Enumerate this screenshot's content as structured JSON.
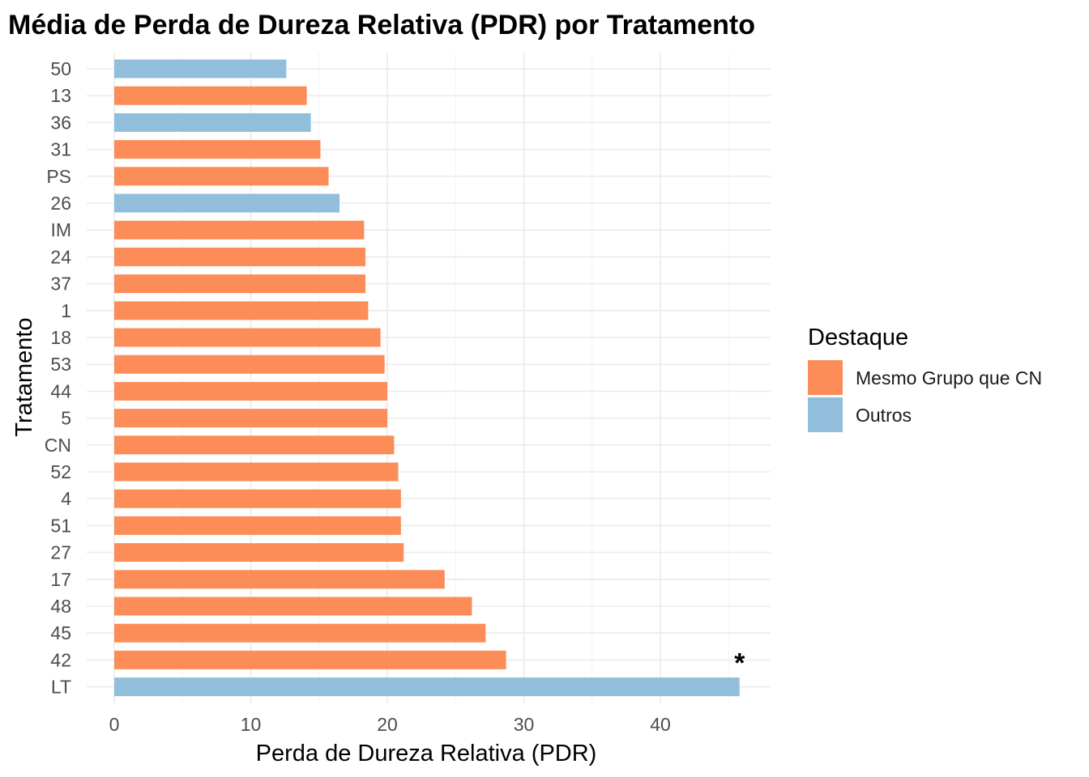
{
  "chart_data": {
    "type": "bar",
    "orientation": "horizontal",
    "title": "Média de Perda de Dureza Relativa (PDR) por Tratamento",
    "xlabel": "Perda de Dureza Relativa (PDR)",
    "ylabel": "Tratamento",
    "xlim": [
      0,
      48
    ],
    "x_ticks": [
      0,
      10,
      20,
      30,
      40
    ],
    "grid": true,
    "legend": {
      "title": "Destaque",
      "position": "right",
      "entries": [
        {
          "name": "Mesmo Grupo que CN",
          "color": "#fc8d59"
        },
        {
          "name": "Outros",
          "color": "#91bfdb"
        }
      ]
    },
    "categories": [
      "50",
      "13",
      "36",
      "31",
      "PS",
      "26",
      "IM",
      "24",
      "37",
      "1",
      "18",
      "53",
      "44",
      "5",
      "CN",
      "52",
      "4",
      "51",
      "27",
      "17",
      "48",
      "45",
      "42",
      "LT"
    ],
    "values": [
      12.6,
      14.1,
      14.4,
      15.1,
      15.7,
      16.5,
      18.3,
      18.4,
      18.4,
      18.6,
      19.5,
      19.8,
      20.0,
      20.0,
      20.5,
      20.8,
      21.0,
      21.0,
      21.2,
      24.2,
      26.2,
      27.2,
      28.7,
      45.8
    ],
    "groups": [
      "Outros",
      "Mesmo Grupo que CN",
      "Outros",
      "Mesmo Grupo que CN",
      "Mesmo Grupo que CN",
      "Outros",
      "Mesmo Grupo que CN",
      "Mesmo Grupo que CN",
      "Mesmo Grupo que CN",
      "Mesmo Grupo que CN",
      "Mesmo Grupo que CN",
      "Mesmo Grupo que CN",
      "Mesmo Grupo que CN",
      "Mesmo Grupo que CN",
      "Mesmo Grupo que CN",
      "Mesmo Grupo que CN",
      "Mesmo Grupo que CN",
      "Mesmo Grupo que CN",
      "Mesmo Grupo que CN",
      "Mesmo Grupo que CN",
      "Mesmo Grupo que CN",
      "Mesmo Grupo que CN",
      "Mesmo Grupo que CN",
      "Outros"
    ],
    "annotations": [
      {
        "text": "*",
        "category": "LT",
        "x": 45.8
      }
    ]
  }
}
